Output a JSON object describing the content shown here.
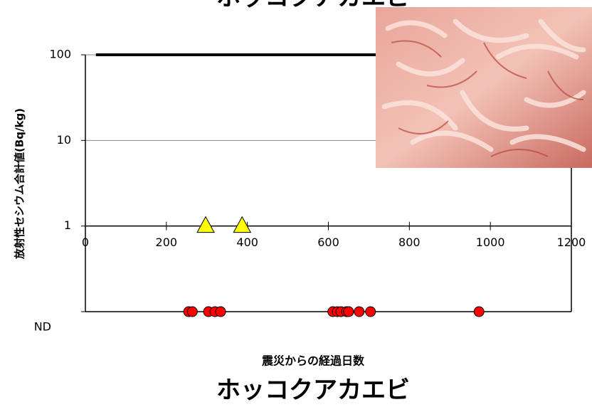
{
  "header_title": "ホッコクアカエビ",
  "chart_data": {
    "type": "scatter",
    "title": "ホッコクアカエビ",
    "x_label": "震災からの経過日数",
    "y_label": "放射性セシウム合計値(Bq/kg)",
    "xlim": [
      0,
      1200
    ],
    "xticks": [
      0,
      200,
      400,
      600,
      800,
      1000,
      1200
    ],
    "ylim": [
      0.1,
      100
    ],
    "yscale": "log",
    "yticks": [
      {
        "value": 0.1,
        "label": "ND"
      },
      1,
      10,
      100
    ],
    "x_axis_at": 1,
    "grid": true,
    "limit": {
      "x": [
        26,
        1200
      ],
      "value": 100,
      "color": "#000000"
    },
    "series": [
      {
        "marker": "triangle",
        "color": "#ffff00",
        "x": [
          297,
          387
        ],
        "values": [
          1,
          1
        ]
      },
      {
        "marker": "circle",
        "color": "#ff0000",
        "x": [
          255,
          264,
          304,
          320,
          334,
          611,
          622,
          631,
          645,
          650,
          676,
          704,
          972
        ],
        "values": [
          0.1,
          0.1,
          0.1,
          0.1,
          0.1,
          0.1,
          0.1,
          0.1,
          0.1,
          0.1,
          0.1,
          0.1,
          0.1
        ]
      }
    ]
  }
}
